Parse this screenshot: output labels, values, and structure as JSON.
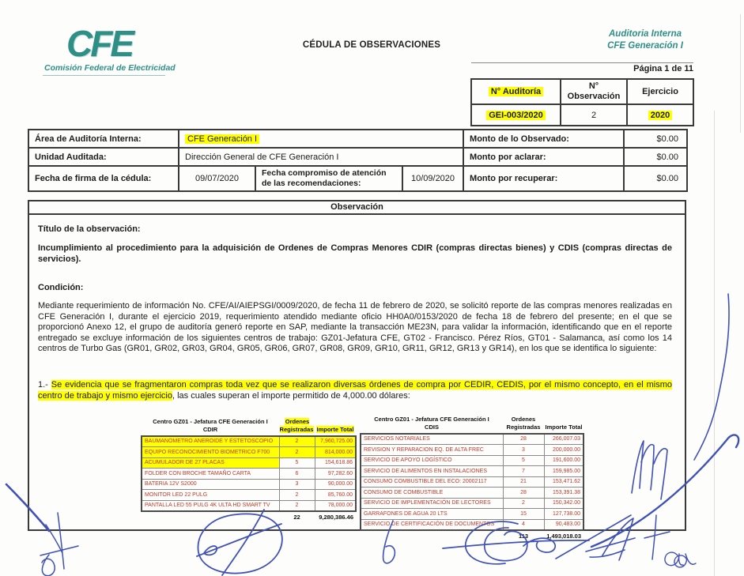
{
  "logo": {
    "brand": "CFE",
    "tagline": "Comisión Federal de Electricidad"
  },
  "header": {
    "title": "CÉDULA DE OBSERVACIONES",
    "dept_line1": "Auditoria Interna",
    "dept_line2": "CFE Generación I",
    "page_label": "Página 1 de 11"
  },
  "audit_box": {
    "col_audit": "N° Auditoría",
    "col_observation": "N° Observación",
    "col_exercise": "Ejercicio",
    "val_audit": "GEI-003/2020",
    "val_observation": "2",
    "val_exercise": "2020"
  },
  "info": {
    "area_label": "Área de Auditoría Interna:",
    "area_value": "CFE Generación I",
    "unit_label": "Unidad Auditada:",
    "unit_value": "Dirección General de CFE Generación I",
    "date_label": "Fecha de firma de la cédula:",
    "date_value": "09/07/2020",
    "commit_label": "Fecha compromiso de atención de las recomendaciones:",
    "commit_value": "10/09/2020",
    "observed_label": "Monto de lo Observado:",
    "observed_value": "$0.00",
    "clarify_label": "Monto por aclarar:",
    "clarify_value": "$0.00",
    "recover_label": "Monto por recuperar:",
    "recover_value": "$0.00"
  },
  "observation": {
    "section_title": "Observación",
    "title_label": "Título de la observación:",
    "title_text": "Incumplimiento al procedimiento para la adquisición de Ordenes de Compras Menores CDIR (compras directas bienes) y CDIS (compras directas de servicios).",
    "condition_label": "Condición:",
    "paragraph": "Mediante requerimiento de información No. CFE/AI/AIEPSGI/0009/2020, de fecha 11 de febrero de 2020, se solicitó reporte de las compras menores realizadas en CFE Generación I, durante el ejercicio 2019, requerimiento atendido mediante oficio HH0A0/0153/2020 de fecha 18 de febrero del presente; en el que se proporcionó Anexo 12, el grupo de auditoría generó reporte en SAP, mediante la transacción ME23N, para validar la información, identificando que en el reporte entregado se excluye información de los siguientes centros de trabajo: GZ01-Jefatura CFE, GT02 - Francisco. Pérez Ríos, GT01 - Salamanca, así como los 14 centros de Turbo Gas (GR01, GR02, GR03, GR04, GR05, GR06, GR07, GR08, GR09, GR10, GR11, GR12, GR13 y GR14), en los que se identifica lo siguiente:",
    "finding_prefix": "1.- ",
    "finding_highlight": "Se evidencia que se fragmentaron compras toda vez que se realizaron diversas órdenes de compra por CEDIR, CEDIS, por el mismo concepto, en el mismo centro de trabajo y mismo ejercicio",
    "finding_suffix": ", las cuales superan el importe permitido de 4,000.00 dólares:"
  },
  "cdir_table": {
    "title_line1": "Centro GZ01 - Jefatura CFE Generación I",
    "title_line2": "CDIR",
    "col_orders": "Ordenes Registradas",
    "col_amount": "Importe Total",
    "rows": [
      {
        "name": "BAUMANOMETRO ANEROIDE Y ESTETOSCOPIO",
        "orders": "2",
        "amount": "7,960,725.00",
        "highlight": "full"
      },
      {
        "name": "EQUIPO RECONOCIMIENTO BIOMETRICO F700",
        "orders": "2",
        "amount": "814,000.00",
        "highlight": "full"
      },
      {
        "name": "ACUMULADOR DE 27 PLACAS",
        "orders": "5",
        "amount": "154,618.86",
        "highlight": "name"
      },
      {
        "name": "FOLDER CON BROCHE TAMAÑO CARTA",
        "orders": "6",
        "amount": "97,282.60",
        "highlight": "none"
      },
      {
        "name": "BATERIA 12V S2000",
        "orders": "3",
        "amount": "90,000.00",
        "highlight": "none"
      },
      {
        "name": "MONITOR LED 22 PULG",
        "orders": "2",
        "amount": "85,760.00",
        "highlight": "none"
      },
      {
        "name": "PANTALLA LED 55 PULG 4K ULTA HD SMART TV",
        "orders": "2",
        "amount": "78,000.00",
        "highlight": "none"
      }
    ],
    "total_orders": "22",
    "total_amount": "9,280,386.46"
  },
  "cdis_table": {
    "title_line1": "Centro GZ01 - Jefatura CFE Generación I",
    "title_line2": "CDIS",
    "col_orders": "Ordenes Registradas",
    "col_amount": "Importe Total",
    "rows": [
      {
        "name": "SERVICIOS NOTARIALES",
        "orders": "28",
        "amount": "266,007.03",
        "highlight": "none"
      },
      {
        "name": "REVISION Y REPARACION EQ. DE ALTA FREC",
        "orders": "3",
        "amount": "200,000.00",
        "highlight": "none"
      },
      {
        "name": "SERVICIO DE APOYO LOGÍSTICO",
        "orders": "5",
        "amount": "191,600.00",
        "highlight": "none"
      },
      {
        "name": "SERVICIO DE ALIMENTOS EN INSTALACIONES",
        "orders": "7",
        "amount": "159,985.00",
        "highlight": "none"
      },
      {
        "name": "CONSUMO COMBUSTIBLE DEL ECO: 20002117",
        "orders": "21",
        "amount": "153,471.62",
        "highlight": "none"
      },
      {
        "name": "CONSUMO DE COMBUSTIBLE",
        "orders": "28",
        "amount": "153,391.38",
        "highlight": "none"
      },
      {
        "name": "SERVICIO DE IMPLEMENTACIÓN DE LECTORES",
        "orders": "2",
        "amount": "150,342.00",
        "highlight": "none"
      },
      {
        "name": "GARRAFONES DE AGUA 20 LTS",
        "orders": "15",
        "amount": "127,738.00",
        "highlight": "none"
      },
      {
        "name": "SERVICIO DE CERTIFICACIÓN DE DOCUMENTOS",
        "orders": "4",
        "amount": "90,483.00",
        "highlight": "none"
      }
    ],
    "total_orders": "113",
    "total_amount": "1,493,018.03"
  }
}
